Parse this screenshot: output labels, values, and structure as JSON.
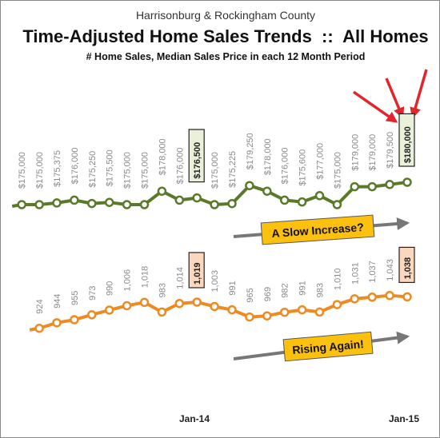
{
  "header": {
    "subtitle": "Harrisonburg & Rockingham County",
    "title": "Time-Adjusted Home Sales Trends  ::  All Homes",
    "description": "# Home Sales, Median Sales Price in each 12 Month Period"
  },
  "annotations": {
    "price": "A Slow Increase?",
    "sales": "Rising Again!"
  },
  "colors": {
    "price_line": "#5a7a2a",
    "sales_line": "#ee8a22",
    "price_box_fill": "#eaf1da",
    "sales_box_fill": "#fbd7bd",
    "callout_fill": "#fcc00f",
    "arrow_red": "#e0262a",
    "arrow_gray": "#777777"
  },
  "chart_data": [
    {
      "type": "line",
      "title": "Median Sales Price",
      "x_ticks": [
        "Jan-14",
        "Jan-15"
      ],
      "values": [
        175000,
        175000,
        175375,
        176000,
        175250,
        175500,
        175000,
        175000,
        178000,
        176000,
        176500,
        175000,
        175225,
        179250,
        178000,
        176000,
        175600,
        177000,
        175000,
        179000,
        179000,
        179500,
        180000
      ],
      "labels": [
        "$175,000",
        "$175,000",
        "$175,375",
        "$176,000",
        "$175,250",
        "$175,500",
        "$175,000",
        "$175,000",
        "$178,000",
        "$176,000",
        "$176,500",
        "$175,000",
        "$175,225",
        "$179,250",
        "$178,000",
        "$176,000",
        "$175,600",
        "$177,000",
        "$175,000",
        "$179,000",
        "$179,000",
        "$179,500",
        "$180,000"
      ],
      "highlighted": [
        10,
        22
      ]
    },
    {
      "type": "line",
      "title": "# Home Sales",
      "x_ticks": [
        "Jan-14",
        "Jan-15"
      ],
      "values": [
        924,
        944,
        955,
        973,
        990,
        1006,
        1018,
        983,
        1014,
        1019,
        1003,
        991,
        965,
        969,
        982,
        991,
        983,
        1010,
        1031,
        1037,
        1043,
        1038
      ],
      "labels": [
        "924",
        "944",
        "955",
        "973",
        "990",
        "1,006",
        "1,018",
        "983",
        "1,014",
        "1,019",
        "1,003",
        "991",
        "965",
        "969",
        "982",
        "991",
        "983",
        "1,010",
        "1,031",
        "1,037",
        "1,043",
        "1,038"
      ],
      "highlighted": [
        9,
        21
      ]
    }
  ]
}
